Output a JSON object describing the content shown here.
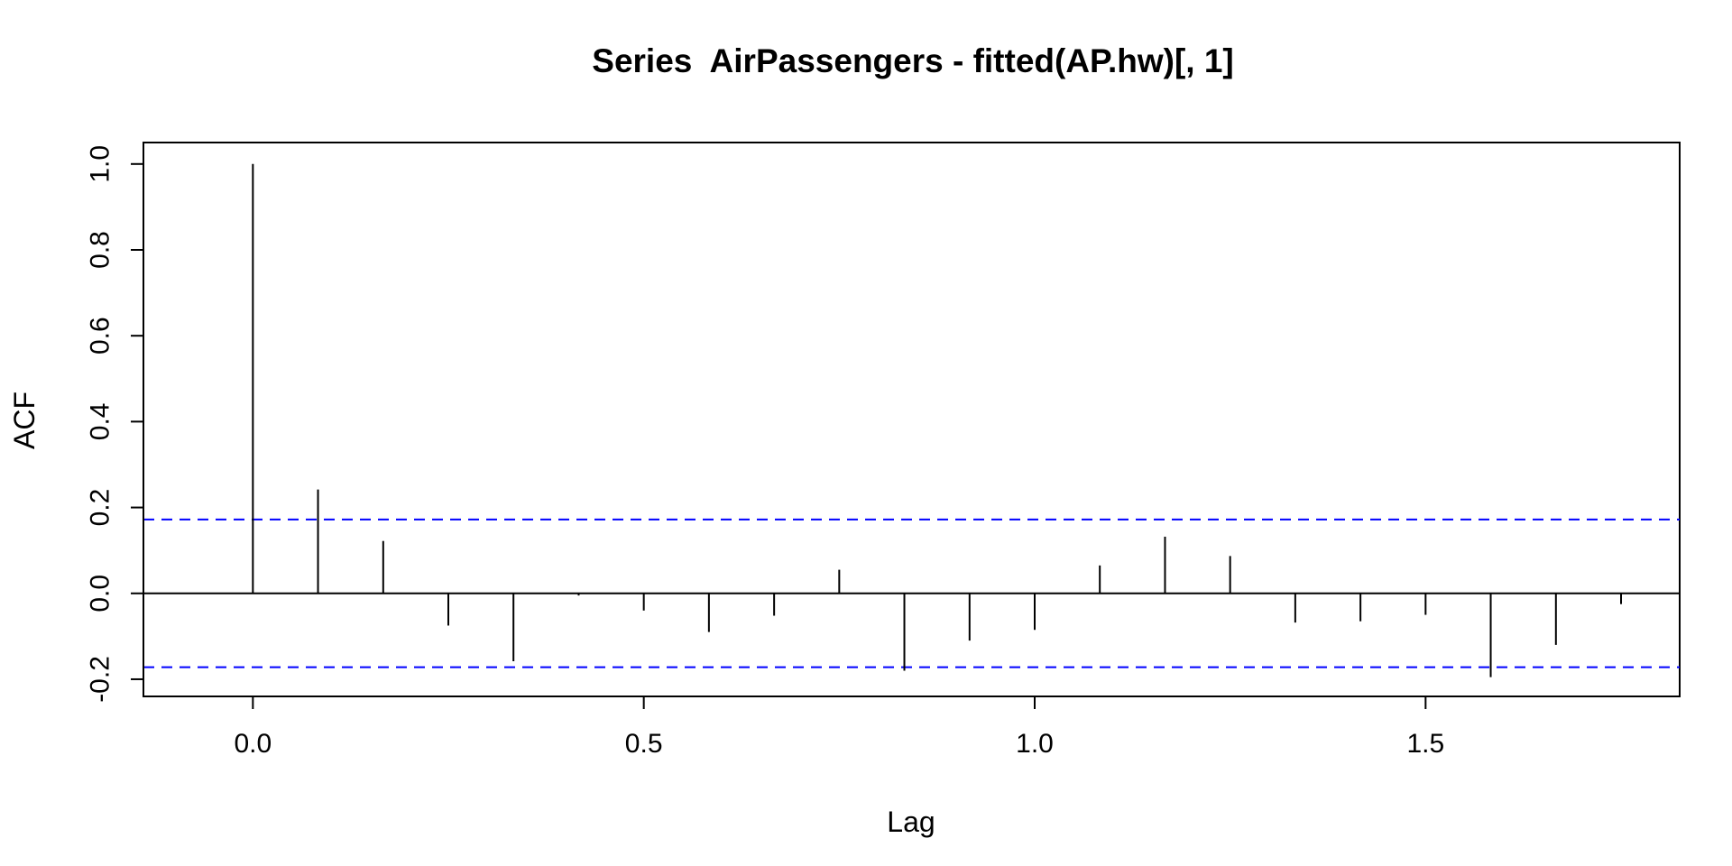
{
  "chart_data": {
    "type": "bar",
    "title": "Series  AirPassengers - fitted(AP.hw)[, 1]",
    "xlabel": "Lag",
    "ylabel": "ACF",
    "xlim": [
      -0.14,
      1.825
    ],
    "ylim": [
      -0.24,
      1.05
    ],
    "x_ticks": [
      0.0,
      0.5,
      1.0,
      1.5
    ],
    "x_tick_labels": [
      "0.0",
      "0.5",
      "1.0",
      "1.5"
    ],
    "y_ticks": [
      -0.2,
      0.0,
      0.2,
      0.4,
      0.6,
      0.8,
      1.0
    ],
    "y_tick_labels": [
      "-0.2",
      "0.0",
      "0.2",
      "0.4",
      "0.6",
      "0.8",
      "1.0"
    ],
    "lags": [
      0.0,
      0.0833,
      0.1667,
      0.25,
      0.3333,
      0.4167,
      0.5,
      0.5833,
      0.6667,
      0.75,
      0.8333,
      0.9167,
      1.0,
      1.0833,
      1.1667,
      1.25,
      1.3333,
      1.4167,
      1.5,
      1.5833,
      1.6667,
      1.75
    ],
    "acf": [
      1.0,
      0.242,
      0.122,
      -0.075,
      -0.158,
      -0.005,
      -0.04,
      -0.09,
      -0.052,
      0.055,
      -0.18,
      -0.11,
      -0.085,
      0.065,
      0.132,
      0.087,
      -0.068,
      -0.065,
      -0.05,
      -0.195,
      -0.12,
      -0.025
    ],
    "confidence_bound": 0.172,
    "zero_line": true,
    "grid": false,
    "colors": {
      "bars": "#000000",
      "confidence_lines": "#0000ff",
      "axes": "#000000"
    }
  }
}
